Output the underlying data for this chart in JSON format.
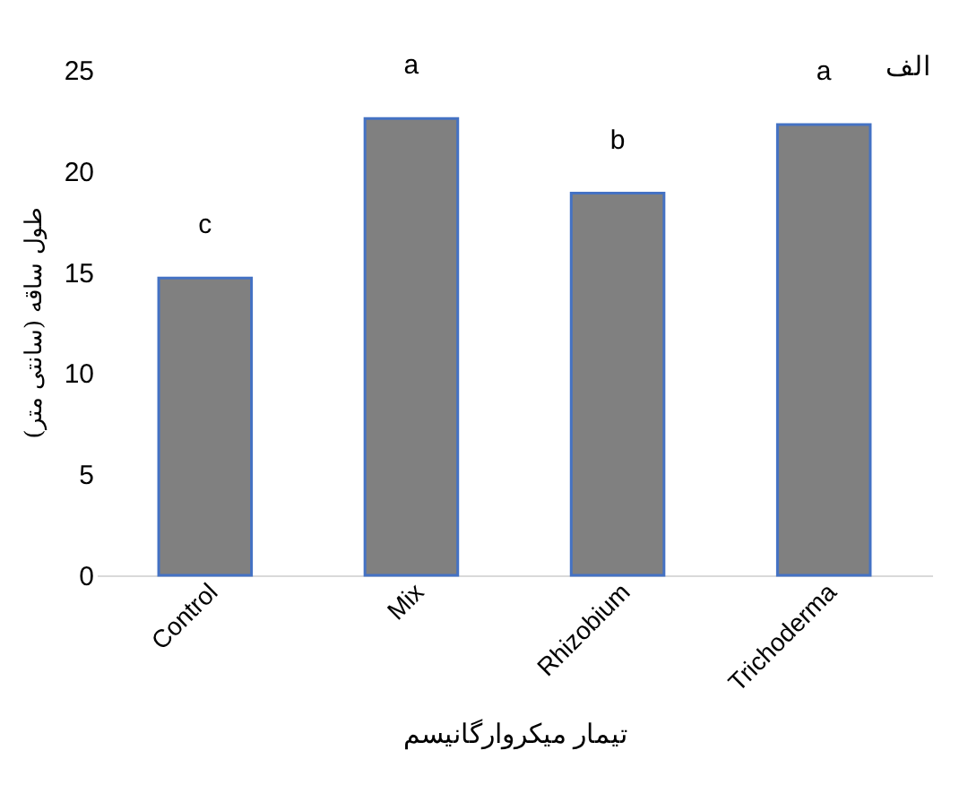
{
  "chart_data": {
    "type": "bar",
    "categories": [
      "Control",
      "Mix",
      "Rhizobium",
      "Trichoderma"
    ],
    "values": [
      14.7,
      22.6,
      18.9,
      22.3
    ],
    "color": "#808080",
    "ylim": [
      0,
      25
    ],
    "yticks": [
      0,
      5,
      10,
      15,
      20,
      25
    ],
    "grid": false,
    "xlabel": "تیمار میکروارگانیسم",
    "ylabel": "طول ساقه (سانتی متر)",
    "annotations": [
      {
        "text": "c",
        "x": "Control",
        "y": 14.7
      },
      {
        "text": "a",
        "x": "Mix",
        "y": 22.6
      },
      {
        "text": "b",
        "x": "Rhizobium",
        "y": 18.9
      },
      {
        "text": "a",
        "x": "Trichoderma",
        "y": 22.3
      },
      "الف"
    ]
  }
}
